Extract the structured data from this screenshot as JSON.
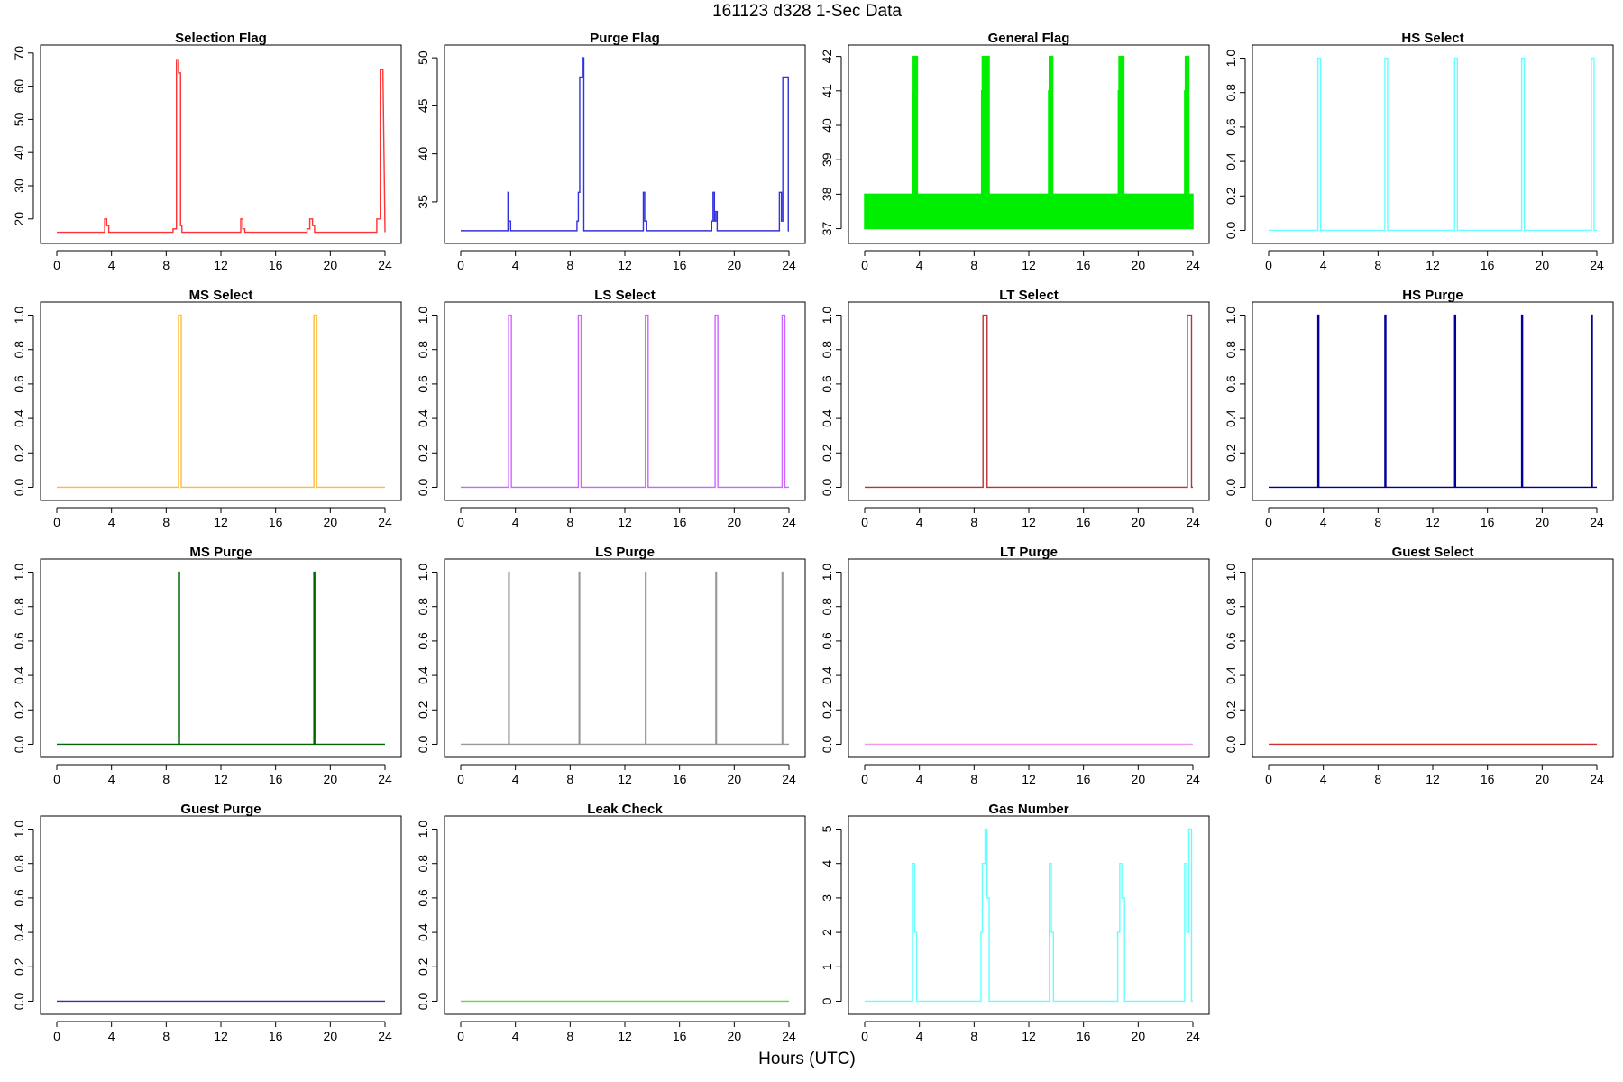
{
  "figure": {
    "title": "161123   d328   1-Sec Data",
    "xlabel": "Hours (UTC)"
  },
  "chart_data": [
    {
      "type": "line",
      "title": "Selection Flag",
      "color": "#ff3333",
      "xlim": [
        0,
        24
      ],
      "ylim": [
        15,
        70
      ],
      "xticks": [
        0,
        4,
        8,
        12,
        16,
        20,
        24
      ],
      "yticks": [
        20,
        30,
        40,
        50,
        60,
        70
      ],
      "series": [
        {
          "x": [
            0,
            3.5,
            3.5,
            3.65,
            3.65,
            3.8,
            3.8,
            8.5,
            8.5,
            8.75,
            8.75,
            8.9,
            8.9,
            9.05,
            9.05,
            9.15,
            9.15,
            13.45,
            13.45,
            13.6,
            13.6,
            13.75,
            13.75,
            18.3,
            18.3,
            18.5,
            18.5,
            18.7,
            18.7,
            18.85,
            18.85,
            23.4,
            23.4,
            23.65,
            23.65,
            23.85,
            23.85,
            24
          ],
          "y": [
            16,
            16,
            20,
            20,
            18,
            18,
            16,
            16,
            17,
            17,
            68,
            68,
            64,
            64,
            18,
            18,
            16,
            16,
            20,
            20,
            17,
            17,
            16,
            16,
            17,
            17,
            20,
            20,
            18,
            18,
            16,
            16,
            20,
            20,
            65,
            65,
            64,
            16
          ]
        }
      ]
    },
    {
      "type": "line",
      "title": "Purge Flag",
      "color": "#3333dd",
      "xlim": [
        0,
        24
      ],
      "ylim": [
        31.5,
        50.5
      ],
      "xticks": [
        0,
        4,
        8,
        12,
        16,
        20,
        24
      ],
      "yticks": [
        35,
        40,
        45,
        50
      ],
      "series": [
        {
          "x": [
            0,
            3.45,
            3.45,
            3.5,
            3.5,
            3.65,
            3.65,
            3.75,
            3.75,
            8.5,
            8.5,
            8.6,
            8.6,
            8.7,
            8.7,
            8.9,
            8.9,
            9.0,
            9.0,
            13.35,
            13.35,
            13.45,
            13.45,
            13.6,
            13.6,
            18.35,
            18.35,
            18.45,
            18.45,
            18.55,
            18.55,
            18.65,
            18.65,
            18.75,
            18.75,
            23.3,
            23.3,
            23.45,
            23.45,
            23.55,
            23.55,
            23.95,
            23.95,
            24
          ],
          "y": [
            32,
            32,
            36,
            36,
            33,
            33,
            32,
            32,
            32,
            32,
            33,
            33,
            36,
            36,
            48,
            48,
            50,
            50,
            32,
            32,
            36,
            36,
            33,
            33,
            32,
            32,
            33,
            33,
            36,
            36,
            33,
            33,
            34,
            34,
            32,
            32,
            36,
            36,
            33,
            33,
            48,
            48,
            32,
            32
          ]
        }
      ]
    },
    {
      "type": "area",
      "title": "General Flag",
      "color": "#00ee00",
      "xlim": [
        0,
        24
      ],
      "ylim": [
        36.8,
        42.1
      ],
      "xticks": [
        0,
        4,
        8,
        12,
        16,
        20,
        24
      ],
      "yticks": [
        37,
        38,
        39,
        40,
        41,
        42
      ],
      "series": [
        {
          "x": [
            0,
            3.5,
            3.5,
            3.55,
            3.55,
            3.85,
            3.85,
            8.55,
            8.55,
            8.6,
            8.6,
            8.85,
            8.85,
            8.95,
            8.95,
            9.1,
            9.1,
            13.45,
            13.45,
            13.5,
            13.5,
            13.75,
            13.75,
            18.55,
            18.55,
            18.6,
            18.6,
            18.95,
            18.95,
            23.4,
            23.4,
            23.45,
            23.45,
            23.7,
            23.7,
            24
          ],
          "y": [
            38,
            38,
            41,
            41,
            42,
            42,
            38,
            38,
            41,
            41,
            42,
            42,
            38,
            38,
            42,
            42,
            38,
            38,
            41,
            41,
            42,
            42,
            38,
            38,
            41,
            41,
            42,
            42,
            38,
            38,
            41,
            41,
            42,
            42,
            38,
            38
          ]
        }
      ]
    },
    {
      "type": "line",
      "title": "HS Select",
      "color": "#66ffff",
      "xlim": [
        0,
        24
      ],
      "ylim": [
        -0.03,
        1.03
      ],
      "xticks": [
        0,
        4,
        8,
        12,
        16,
        20,
        24
      ],
      "yticks": [
        0.0,
        0.2,
        0.4,
        0.6,
        0.8,
        1.0
      ],
      "series": [
        {
          "x": [
            0,
            3.6,
            3.6,
            3.8,
            3.8,
            8.5,
            8.5,
            8.7,
            8.7,
            13.6,
            13.6,
            13.8,
            13.8,
            18.5,
            18.5,
            18.7,
            18.7,
            23.6,
            23.6,
            23.8,
            23.8,
            24
          ],
          "y": [
            0,
            0,
            1,
            1,
            0,
            0,
            1,
            1,
            0,
            0,
            1,
            1,
            0,
            0,
            1,
            1,
            0,
            0,
            1,
            1,
            0,
            0
          ]
        }
      ]
    },
    {
      "type": "line",
      "title": "MS Select",
      "color": "#ffbb33",
      "xlim": [
        0,
        24
      ],
      "ylim": [
        -0.03,
        1.03
      ],
      "xticks": [
        0,
        4,
        8,
        12,
        16,
        20,
        24
      ],
      "yticks": [
        0.0,
        0.2,
        0.4,
        0.6,
        0.8,
        1.0
      ],
      "series": [
        {
          "x": [
            0,
            8.9,
            8.9,
            9.1,
            9.1,
            18.8,
            18.8,
            19.0,
            19.0,
            24
          ],
          "y": [
            0,
            0,
            1,
            1,
            0,
            0,
            1,
            1,
            0,
            0
          ]
        }
      ]
    },
    {
      "type": "line",
      "title": "LS Select",
      "color": "#cc66ff",
      "xlim": [
        0,
        24
      ],
      "ylim": [
        -0.03,
        1.03
      ],
      "xticks": [
        0,
        4,
        8,
        12,
        16,
        20,
        24
      ],
      "yticks": [
        0.0,
        0.2,
        0.4,
        0.6,
        0.8,
        1.0
      ],
      "series": [
        {
          "x": [
            0,
            3.5,
            3.5,
            3.7,
            3.7,
            8.6,
            8.6,
            8.8,
            8.8,
            13.5,
            13.5,
            13.7,
            13.7,
            18.6,
            18.6,
            18.8,
            18.8,
            23.5,
            23.5,
            23.7,
            23.7,
            24
          ],
          "y": [
            0,
            0,
            1,
            1,
            0,
            0,
            1,
            1,
            0,
            0,
            1,
            1,
            0,
            0,
            1,
            1,
            0,
            0,
            1,
            1,
            0,
            0
          ]
        }
      ]
    },
    {
      "type": "line",
      "title": "LT Select",
      "color": "#bb3333",
      "xlim": [
        0,
        24
      ],
      "ylim": [
        -0.03,
        1.03
      ],
      "xticks": [
        0,
        4,
        8,
        12,
        16,
        20,
        24
      ],
      "yticks": [
        0.0,
        0.2,
        0.4,
        0.6,
        0.8,
        1.0
      ],
      "series": [
        {
          "x": [
            0,
            8.65,
            8.65,
            8.95,
            8.95,
            23.6,
            23.6,
            23.9,
            23.9,
            24
          ],
          "y": [
            0,
            0,
            1,
            1,
            0,
            0,
            1,
            1,
            0,
            0
          ]
        }
      ]
    },
    {
      "type": "line",
      "title": "HS Purge",
      "color": "#000099",
      "xlim": [
        0,
        24
      ],
      "ylim": [
        -0.03,
        1.03
      ],
      "xticks": [
        0,
        4,
        8,
        12,
        16,
        20,
        24
      ],
      "yticks": [
        0.0,
        0.2,
        0.4,
        0.6,
        0.8,
        1.0
      ],
      "series": [
        {
          "x": [
            0,
            3.6,
            3.6,
            3.67,
            3.67,
            8.5,
            8.5,
            8.57,
            8.57,
            13.6,
            13.6,
            13.67,
            13.67,
            18.5,
            18.5,
            18.57,
            18.57,
            23.6,
            23.6,
            23.67,
            23.67,
            24
          ],
          "y": [
            0,
            0,
            1,
            1,
            0,
            0,
            1,
            1,
            0,
            0,
            1,
            1,
            0,
            0,
            1,
            1,
            0,
            0,
            1,
            1,
            0,
            0
          ]
        }
      ]
    },
    {
      "type": "line",
      "title": "MS Purge",
      "color": "#006600",
      "xlim": [
        0,
        24
      ],
      "ylim": [
        -0.03,
        1.03
      ],
      "xticks": [
        0,
        4,
        8,
        12,
        16,
        20,
        24
      ],
      "yticks": [
        0.0,
        0.2,
        0.4,
        0.6,
        0.8,
        1.0
      ],
      "series": [
        {
          "x": [
            0,
            8.9,
            8.9,
            8.97,
            8.97,
            18.8,
            18.8,
            18.87,
            18.87,
            24
          ],
          "y": [
            0,
            0,
            1,
            1,
            0,
            0,
            1,
            1,
            0,
            0
          ]
        }
      ]
    },
    {
      "type": "line",
      "title": "LS Purge",
      "color": "#999999",
      "xlim": [
        0,
        24
      ],
      "ylim": [
        -0.03,
        1.03
      ],
      "xticks": [
        0,
        4,
        8,
        12,
        16,
        20,
        24
      ],
      "yticks": [
        0.0,
        0.2,
        0.4,
        0.6,
        0.8,
        1.0
      ],
      "series": [
        {
          "x": [
            0,
            3.5,
            3.5,
            3.55,
            3.55,
            8.65,
            8.65,
            8.7,
            8.7,
            13.5,
            13.5,
            13.55,
            13.55,
            18.65,
            18.65,
            18.7,
            18.7,
            23.5,
            23.5,
            23.55,
            23.55,
            24
          ],
          "y": [
            0,
            0,
            1,
            1,
            0,
            0,
            1,
            1,
            0,
            0,
            1,
            1,
            0,
            0,
            1,
            1,
            0,
            0,
            1,
            1,
            0,
            0
          ]
        }
      ]
    },
    {
      "type": "line",
      "title": "LT Purge",
      "color": "#ee99ee",
      "xlim": [
        0,
        24
      ],
      "ylim": [
        -0.03,
        1.03
      ],
      "xticks": [
        0,
        4,
        8,
        12,
        16,
        20,
        24
      ],
      "yticks": [
        0.0,
        0.2,
        0.4,
        0.6,
        0.8,
        1.0
      ],
      "series": [
        {
          "x": [
            0,
            24
          ],
          "y": [
            0,
            0
          ]
        }
      ]
    },
    {
      "type": "line",
      "title": "Guest Select",
      "color": "#cc3333",
      "xlim": [
        0,
        24
      ],
      "ylim": [
        -0.03,
        1.03
      ],
      "xticks": [
        0,
        4,
        8,
        12,
        16,
        20,
        24
      ],
      "yticks": [
        0.0,
        0.2,
        0.4,
        0.6,
        0.8,
        1.0
      ],
      "series": [
        {
          "x": [
            0,
            24
          ],
          "y": [
            0,
            0
          ]
        }
      ]
    },
    {
      "type": "line",
      "title": "Guest Purge",
      "color": "#3333aa",
      "xlim": [
        0,
        24
      ],
      "ylim": [
        -0.03,
        1.03
      ],
      "xticks": [
        0,
        4,
        8,
        12,
        16,
        20,
        24
      ],
      "yticks": [
        0.0,
        0.2,
        0.4,
        0.6,
        0.8,
        1.0
      ],
      "series": [
        {
          "x": [
            0,
            24
          ],
          "y": [
            0,
            0
          ]
        }
      ]
    },
    {
      "type": "line",
      "title": "Leak Check",
      "color": "#66dd33",
      "xlim": [
        0,
        24
      ],
      "ylim": [
        -0.03,
        1.03
      ],
      "xticks": [
        0,
        4,
        8,
        12,
        16,
        20,
        24
      ],
      "yticks": [
        0.0,
        0.2,
        0.4,
        0.6,
        0.8,
        1.0
      ],
      "series": [
        {
          "x": [
            0,
            24
          ],
          "y": [
            0,
            0
          ]
        }
      ]
    },
    {
      "type": "line",
      "title": "Gas Number",
      "color": "#66ffff",
      "xlim": [
        0,
        24
      ],
      "ylim": [
        -0.15,
        5.15
      ],
      "xticks": [
        0,
        4,
        8,
        12,
        16,
        20,
        24
      ],
      "yticks": [
        0,
        1,
        2,
        3,
        4,
        5
      ],
      "series": [
        {
          "x": [
            0,
            3.5,
            3.5,
            3.65,
            3.65,
            3.8,
            3.8,
            8.5,
            8.5,
            8.6,
            8.6,
            8.8,
            8.8,
            8.95,
            8.95,
            9.1,
            9.1,
            13.5,
            13.5,
            13.65,
            13.65,
            13.8,
            13.8,
            18.5,
            18.5,
            18.65,
            18.65,
            18.8,
            18.8,
            19.0,
            19.0,
            23.4,
            23.4,
            23.55,
            23.55,
            23.7,
            23.7,
            23.9,
            23.9,
            24
          ],
          "y": [
            0,
            0,
            4,
            4,
            2,
            2,
            0,
            0,
            2,
            2,
            4,
            4,
            5,
            5,
            3,
            3,
            0,
            0,
            4,
            4,
            2,
            2,
            0,
            0,
            2,
            2,
            4,
            4,
            3,
            3,
            0,
            0,
            4,
            4,
            2,
            2,
            5,
            5,
            0,
            0
          ]
        }
      ]
    }
  ]
}
